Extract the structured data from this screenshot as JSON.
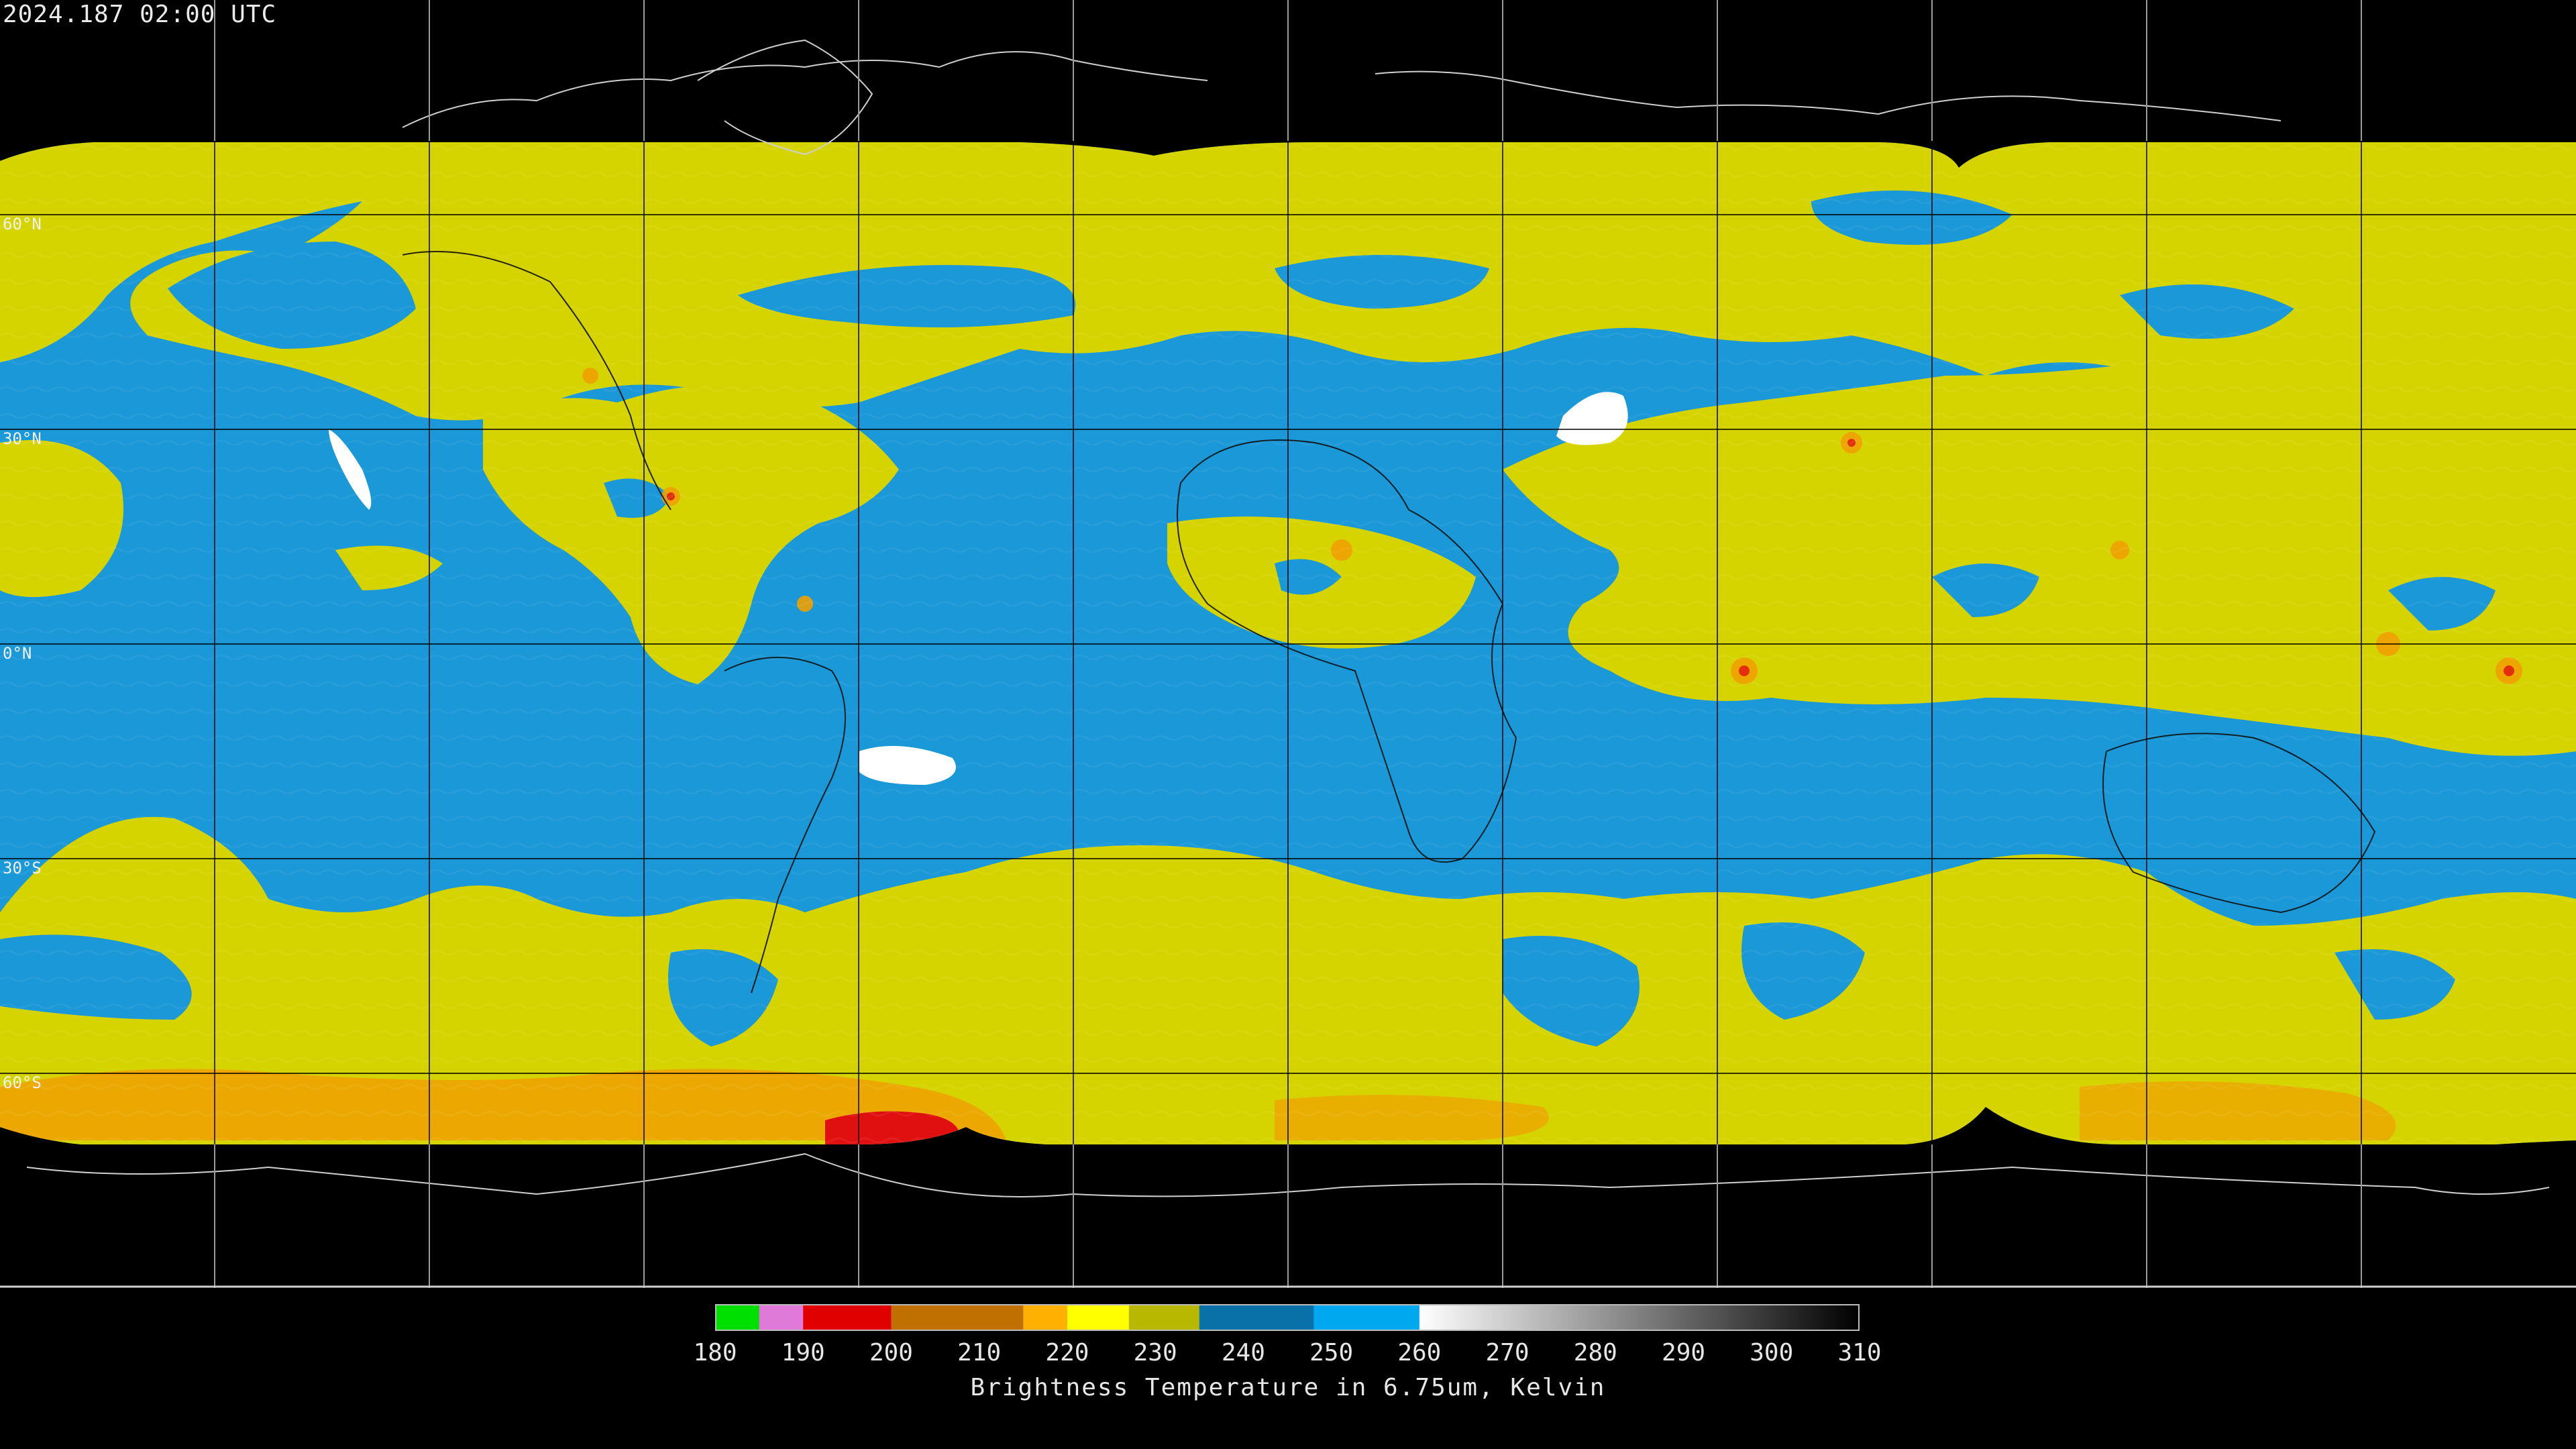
{
  "header": {
    "timestamp": "2024.187 02:00 UTC"
  },
  "map": {
    "projection": "equirectangular",
    "lat_labels": [
      {
        "lat": 60,
        "text": "60°N"
      },
      {
        "lat": 30,
        "text": "30°N"
      },
      {
        "lat": 0,
        "text": "0°N"
      },
      {
        "lat": -30,
        "text": "30°S"
      },
      {
        "lat": -60,
        "text": "60°S"
      }
    ],
    "grid_meridians_every_deg": 30,
    "grid_parallels_every_deg": 30,
    "warm_dry_color": "#1a98d8",
    "moist_color": "#d6d400",
    "cold_color": "#f0a000",
    "very_cold_color": "#e01010",
    "hot_spot_color": "#ffffff"
  },
  "colorbar": {
    "title": "Brightness Temperature in 6.75um, Kelvin",
    "min": 180,
    "max": 310,
    "ticks": [
      "180",
      "190",
      "200",
      "210",
      "220",
      "230",
      "240",
      "250",
      "260",
      "270",
      "280",
      "290",
      "300",
      "310"
    ],
    "segments": [
      {
        "from": 180,
        "to": 185,
        "color": "#00e000"
      },
      {
        "from": 185,
        "to": 190,
        "color": "#e07ad8"
      },
      {
        "from": 190,
        "to": 200,
        "color": "#e00000"
      },
      {
        "from": 200,
        "to": 215,
        "color": "#c07000"
      },
      {
        "from": 215,
        "to": 220,
        "color": "#ffb000"
      },
      {
        "from": 220,
        "to": 227,
        "color": "#ffff00"
      },
      {
        "from": 227,
        "to": 235,
        "color": "#b8b800"
      },
      {
        "from": 235,
        "to": 248,
        "color": "#0a70a8"
      },
      {
        "from": 248,
        "to": 260,
        "color": "#00a8f0"
      },
      {
        "from": 260,
        "to": 310,
        "gradient": [
          "#ffffff",
          "#000000"
        ]
      }
    ]
  }
}
